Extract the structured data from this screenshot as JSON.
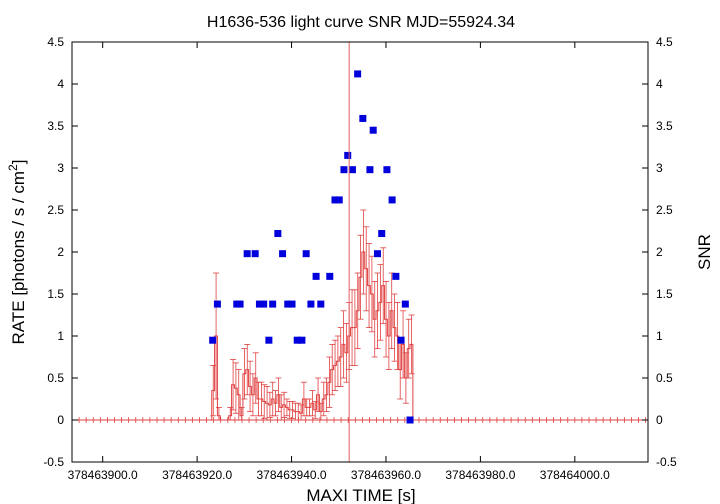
{
  "chart_data": {
    "type": "scatter",
    "title": "H1636-536 light curve  SNR MJD=55924.34",
    "xlabel": "MAXI TIME [s]",
    "ylabel_left_main": "RATE [photons / s / cm",
    "ylabel_left_sup": "2",
    "ylabel_left_close": "]",
    "ylabel_right": "SNR",
    "xlim": [
      378463893.5,
      378464015.5
    ],
    "ylim": [
      -0.5,
      4.5
    ],
    "y2lim": [
      -0.5,
      4.5
    ],
    "x_ticks": [
      378463900,
      378463920,
      378463940,
      378463960,
      378463980,
      378464000
    ],
    "x_tick_labels": [
      "378463900.0",
      "378463920.0",
      "378463940.0",
      "378463960.0",
      "378463980.0",
      "378464000.0"
    ],
    "y_ticks": [
      -0.5,
      0,
      0.5,
      1,
      1.5,
      2,
      2.5,
      3,
      3.5,
      4,
      4.5
    ],
    "y_tick_labels": [
      "-0.5",
      "0",
      "0.5",
      "1",
      "1.5",
      "2",
      "2.5",
      "3",
      "3.5",
      "4",
      "4.5"
    ],
    "vline_x": 378463952.2,
    "colors": {
      "rate": "#e04040",
      "snr": "#0000dd",
      "vline": "#e06060"
    },
    "series": [
      {
        "kind": "step-errorbar",
        "x": [
          378463893.5,
          378463923.1,
          378463923.7,
          378463924.3,
          378463924.9,
          378463925.5,
          378463926.1,
          378463926.7,
          378463927.3,
          378463927.9,
          378463928.5,
          378463929.1,
          378463929.7,
          378463930.3,
          378463930.9,
          378463931.5,
          378463932.1,
          378463932.7,
          378463933.3,
          378463933.9,
          378463934.5,
          378463935.1,
          378463935.7,
          378463936.3,
          378463936.9,
          378463937.5,
          378463938.1,
          378463938.7,
          378463939.3,
          378463939.9,
          378463940.5,
          378463941.1,
          378463941.7,
          378463942.3,
          378463942.9,
          378463943.5,
          378463944.1,
          378463944.7,
          378463945.3,
          378463945.9,
          378463946.5,
          378463947.1,
          378463947.7,
          378463948.3,
          378463948.9,
          378463949.5,
          378463950.1,
          378463950.7,
          378463951.3,
          378463951.9,
          378463952.5,
          378463953.1,
          378463953.7,
          378463954.3,
          378463954.9,
          378463955.5,
          378463956.1,
          378463956.7,
          378463957.3,
          378463957.9,
          378463958.5,
          378463959.1,
          378463959.7,
          378463960.3,
          378463960.9,
          378463961.5,
          378463962.1,
          378463962.7,
          378463963.3,
          378463963.9,
          378463964.5,
          378463965.1,
          378463965.7
        ],
        "y": [
          0,
          0.35,
          1.0,
          0.05,
          0,
          0,
          0,
          0.05,
          0.42,
          0.38,
          0.3,
          0.05,
          0.55,
          0.6,
          0.4,
          0.3,
          0.5,
          0.25,
          0.25,
          0.22,
          0.2,
          0.18,
          0.25,
          0.2,
          0.3,
          0.15,
          0.18,
          0.15,
          0.12,
          0.12,
          0.1,
          0.1,
          0.08,
          0.25,
          0.15,
          0.15,
          0.2,
          0.12,
          0.3,
          0.1,
          0.25,
          0.3,
          0.45,
          0.6,
          0.65,
          0.7,
          0.75,
          0.9,
          0.8,
          1.0,
          1.1,
          1.1,
          1.3,
          1.7,
          2.0,
          1.8,
          1.6,
          1.5,
          1.2,
          1.3,
          1.4,
          1.6,
          1.2,
          1.0,
          1.3,
          1.1,
          1.0,
          0.6,
          0.9,
          0.5,
          0.85,
          0.9,
          0
        ],
        "err": [
          0,
          0.3,
          0.75,
          0.1,
          0,
          0,
          0,
          0.1,
          0.3,
          0.3,
          0.3,
          0.1,
          0.3,
          0.3,
          0.3,
          0.25,
          0.3,
          0.2,
          0.2,
          0.2,
          0.2,
          0.15,
          0.2,
          0.15,
          0.2,
          0.15,
          0.15,
          0.1,
          0.1,
          0.1,
          0.1,
          0.1,
          0.1,
          0.2,
          0.1,
          0.1,
          0.15,
          0.1,
          0.2,
          0.1,
          0.2,
          0.2,
          0.3,
          0.3,
          0.3,
          0.3,
          0.35,
          0.4,
          0.35,
          0.4,
          0.45,
          0.45,
          0.45,
          0.5,
          0.5,
          0.5,
          0.5,
          0.45,
          0.45,
          0.45,
          0.45,
          0.45,
          0.45,
          0.4,
          0.45,
          0.4,
          0.4,
          0.35,
          0.4,
          0.3,
          0.35,
          0.35,
          0
        ],
        "baseline_x_start": 378463893.5,
        "baseline_x_end": 378464015.5,
        "baseline_step": 1.5
      },
      {
        "kind": "snr-points",
        "x": [
          378463923.3,
          378463924.3,
          378463928.4,
          378463929.1,
          378463930.6,
          378463932.3,
          378463933.2,
          378463934.1,
          378463935.2,
          378463936.0,
          378463937.1,
          378463938.1,
          378463939.2,
          378463940.1,
          378463941.2,
          378463942.2,
          378463943.1,
          378463944.1,
          378463945.2,
          378463946.2,
          378463948.1,
          378463949.2,
          378463950.1,
          378463951.1,
          378463951.9,
          378463952.9,
          378463954.0,
          378463955.1,
          378463956.6,
          378463957.3,
          378463958.2,
          378463959.1,
          378463960.2,
          378463961.3,
          378463962.1,
          378463963.2,
          378463964.1,
          378463965.1
        ],
        "y": [
          0.95,
          1.38,
          1.38,
          1.38,
          1.98,
          1.98,
          1.38,
          1.38,
          0.95,
          1.38,
          2.22,
          1.98,
          1.38,
          1.38,
          0.95,
          0.95,
          1.98,
          1.38,
          1.71,
          1.38,
          1.71,
          2.62,
          2.62,
          2.98,
          3.15,
          2.98,
          4.12,
          3.59,
          2.98,
          3.45,
          1.98,
          2.22,
          2.98,
          2.62,
          1.71,
          0.95,
          1.38,
          0
        ]
      }
    ]
  }
}
